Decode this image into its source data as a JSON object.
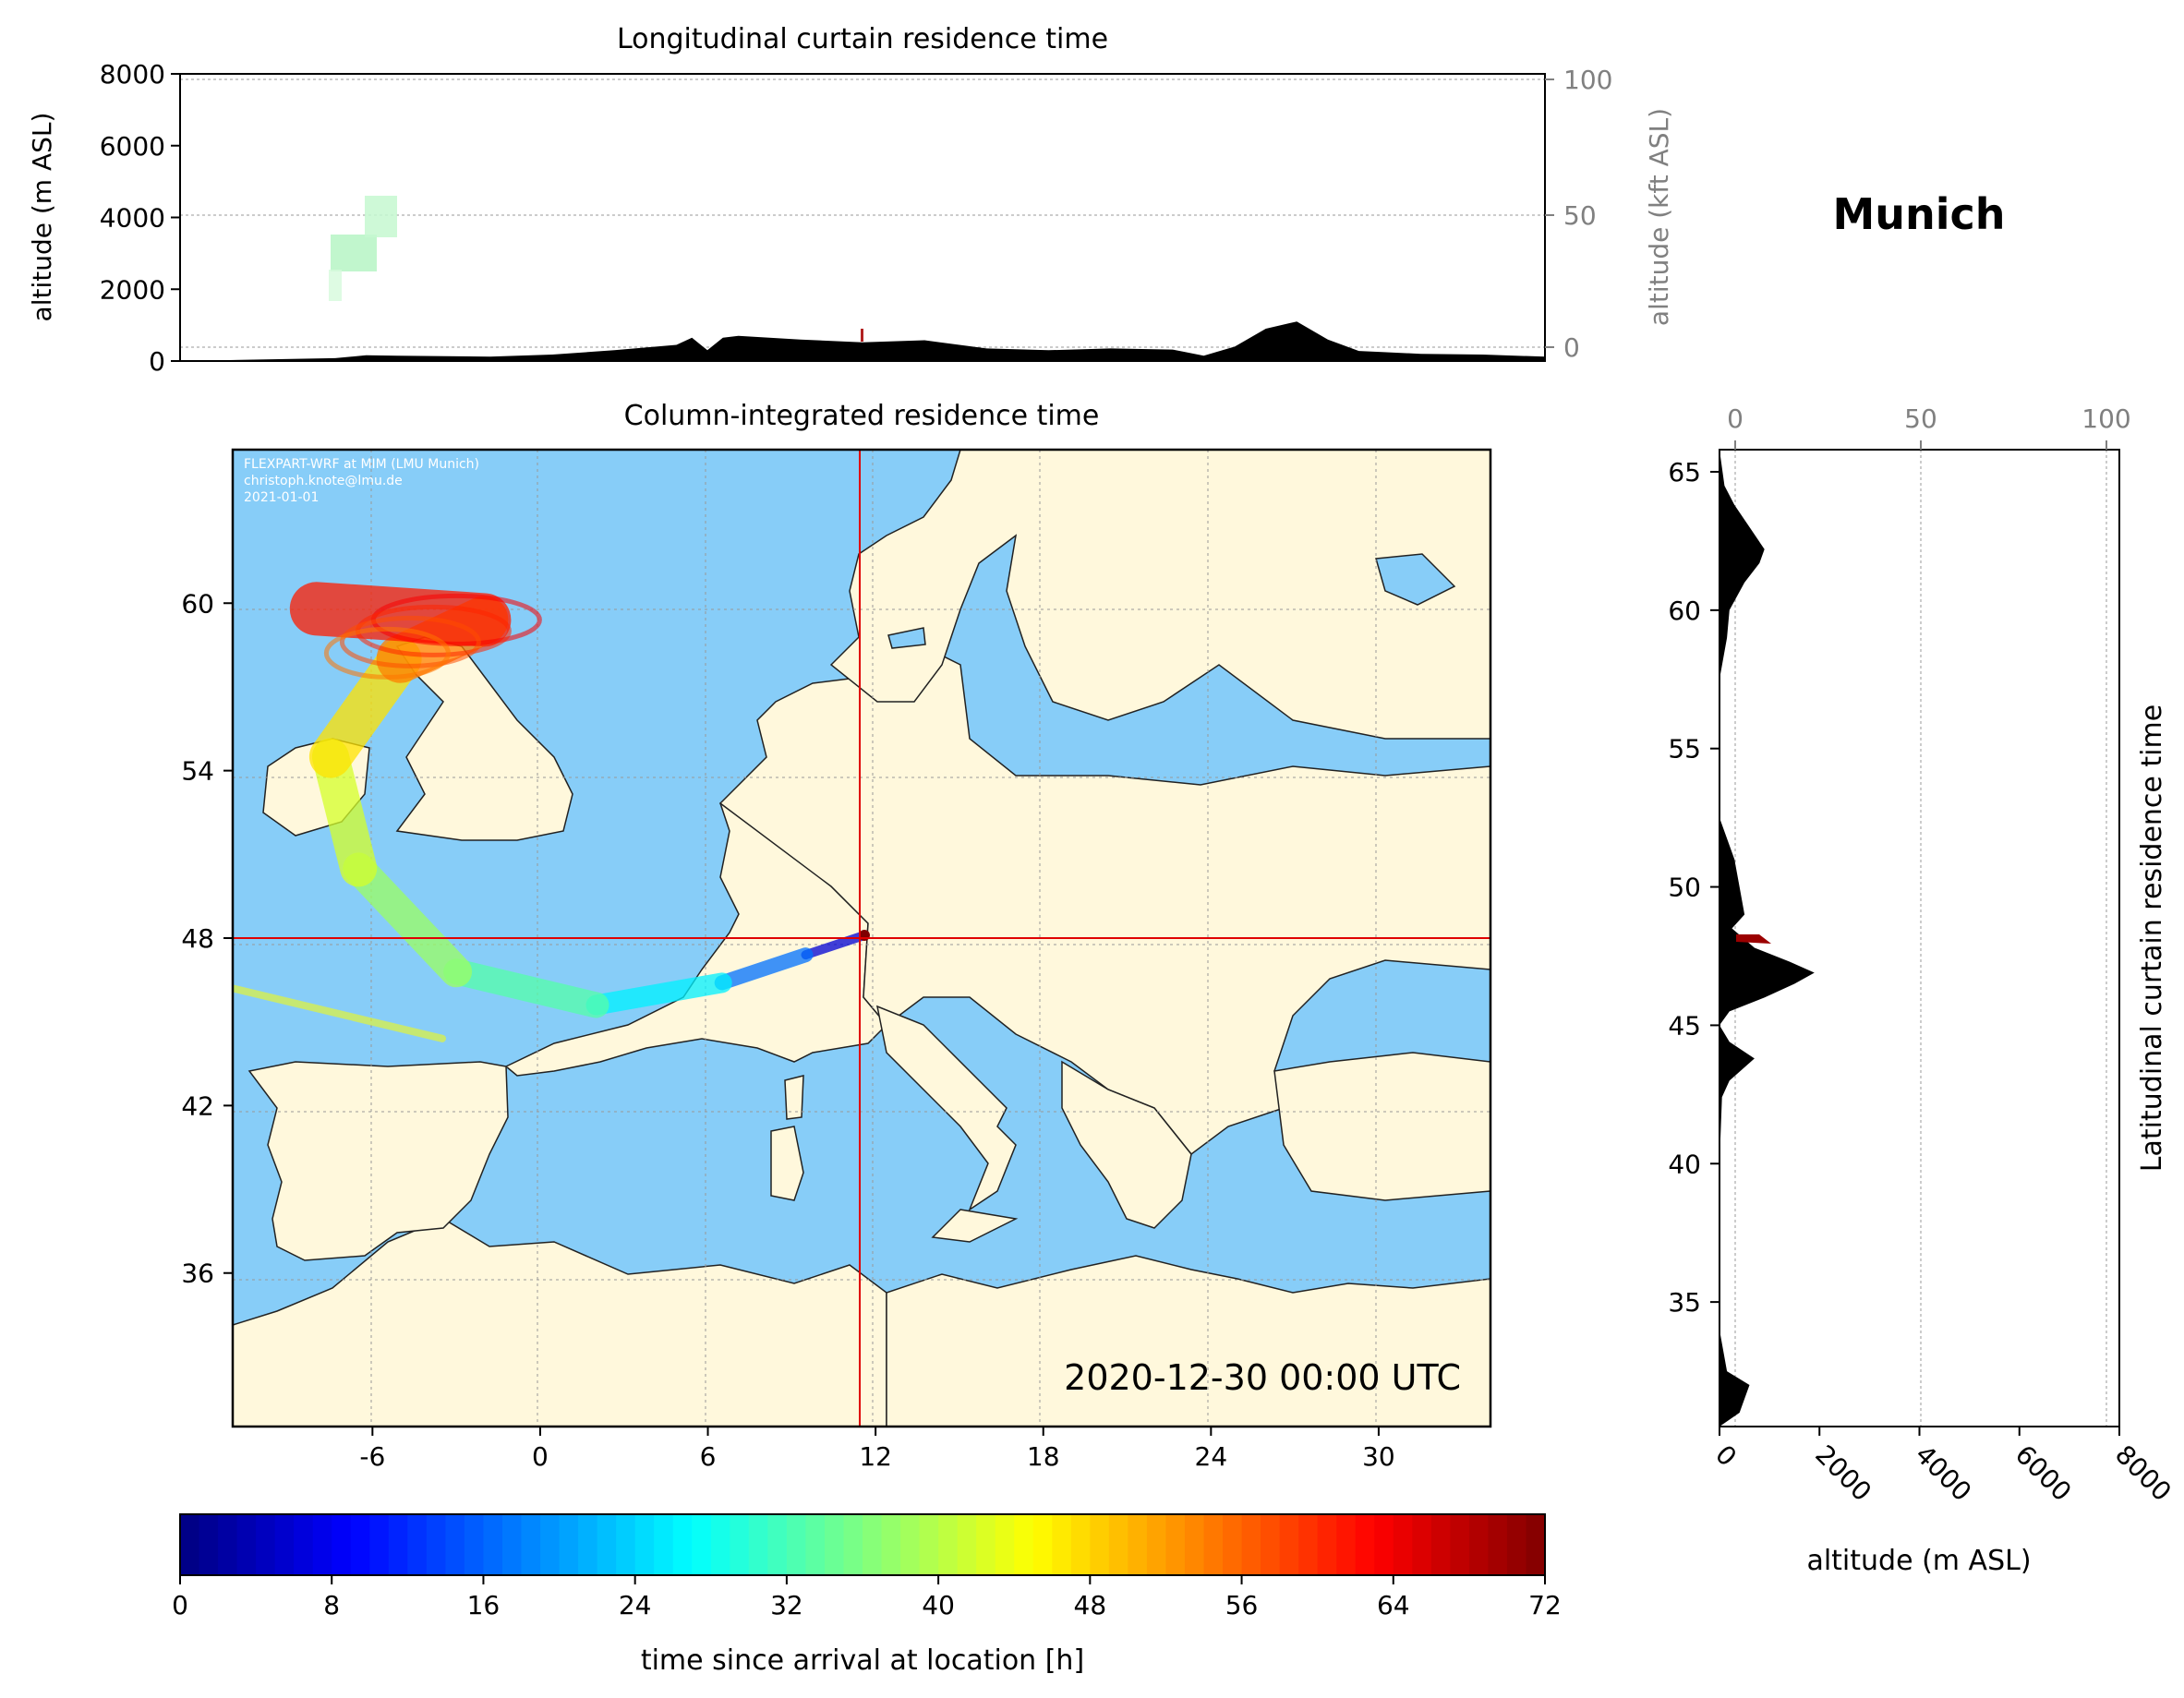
{
  "location_name": "Munich",
  "chart_data": [
    {
      "type": "area",
      "panel": "longitudinal",
      "title": "Longitudinal curtain residence time",
      "ylabel": "altitude (m ASL)",
      "ylabel_right": "altitude (kft ASL)",
      "ylim": [
        0,
        8000
      ],
      "yticks": [
        "0",
        "2000",
        "4000",
        "6000",
        "8000"
      ],
      "yticks_right": [
        "0",
        "50",
        "100"
      ],
      "terrain_lon": [
        -10,
        -5,
        -4,
        -3,
        0,
        2,
        4,
        6,
        6.5,
        7,
        7.5,
        8,
        10,
        12,
        14,
        16,
        18,
        20,
        22,
        23,
        24,
        25,
        26,
        27,
        28,
        30,
        32,
        34
      ],
      "terrain_alt": [
        0,
        80,
        160,
        150,
        120,
        180,
        300,
        450,
        650,
        300,
        650,
        700,
        600,
        520,
        580,
        350,
        300,
        350,
        320,
        150,
        400,
        900,
        1100,
        600,
        280,
        200,
        180,
        120
      ]
    },
    {
      "type": "heatmap",
      "panel": "map",
      "title": "Column-integrated residence time",
      "xticks": [
        "-6",
        "0",
        "6",
        "12",
        "18",
        "24",
        "30"
      ],
      "yticks": [
        "36",
        "42",
        "48",
        "54",
        "60"
      ],
      "xlim": [
        -11,
        34
      ],
      "ylim": [
        30.5,
        65.5
      ],
      "receptor_lon": 11.6,
      "receptor_lat": 48.1,
      "timestamp": "2020-12-30 00:00 UTC",
      "credit_lines": [
        "FLEXPART-WRF at MIM (LMU Munich)",
        "christoph.knote@lmu.de",
        "2021-01-01"
      ],
      "plume_track": [
        {
          "lon": 11.6,
          "lat": 48.1,
          "hours": 0
        },
        {
          "lon": 9.5,
          "lat": 47.4,
          "hours": 12
        },
        {
          "lon": 6.5,
          "lat": 46.4,
          "hours": 22
        },
        {
          "lon": 2.0,
          "lat": 45.6,
          "hours": 30
        },
        {
          "lon": -3.0,
          "lat": 46.8,
          "hours": 36
        },
        {
          "lon": -6.5,
          "lat": 50.5,
          "hours": 40
        },
        {
          "lon": -7.5,
          "lat": 54.5,
          "hours": 44
        },
        {
          "lon": -5.0,
          "lat": 58.0,
          "hours": 50
        },
        {
          "lon": -2.0,
          "lat": 59.4,
          "hours": 58
        },
        {
          "lon": -8.0,
          "lat": 59.8,
          "hours": 64
        }
      ]
    },
    {
      "type": "area",
      "panel": "latitudinal",
      "ylabel_right": "Latitudinal curtain residence time",
      "xlabel": "altitude (m ASL)",
      "xlim": [
        0,
        8000
      ],
      "xticks": [
        "0",
        "2000",
        "4000",
        "6000",
        "8000"
      ],
      "xticks_top": [
        "0",
        "50",
        "100"
      ],
      "yticks": [
        "35",
        "40",
        "45",
        "50",
        "55",
        "60",
        "65"
      ],
      "ylim": [
        30.5,
        65.8
      ],
      "terrain_lat": [
        30.5,
        31,
        32,
        32.5,
        34,
        40,
        42.4,
        43,
        43.8,
        44.4,
        45,
        45.5,
        46,
        46.5,
        46.9,
        47.3,
        47.8,
        48.5,
        49,
        50,
        51,
        51.5,
        52.5,
        55,
        57.5,
        59,
        60,
        61,
        61.7,
        62.2,
        63,
        63.8,
        64.5,
        65.8
      ],
      "terrain_alt": [
        0,
        400,
        600,
        150,
        0,
        0,
        50,
        200,
        700,
        200,
        0,
        200,
        900,
        1500,
        1900,
        1400,
        700,
        250,
        500,
        400,
        300,
        200,
        0,
        0,
        0,
        150,
        200,
        500,
        800,
        900,
        600,
        300,
        100,
        0
      ]
    },
    {
      "type": "colorbar",
      "panel": "colorbar",
      "xlabel": "time since arrival at location [h]",
      "range": [
        0,
        72
      ],
      "ticks": [
        "0",
        "8",
        "16",
        "24",
        "32",
        "40",
        "48",
        "56",
        "64",
        "72"
      ]
    }
  ]
}
